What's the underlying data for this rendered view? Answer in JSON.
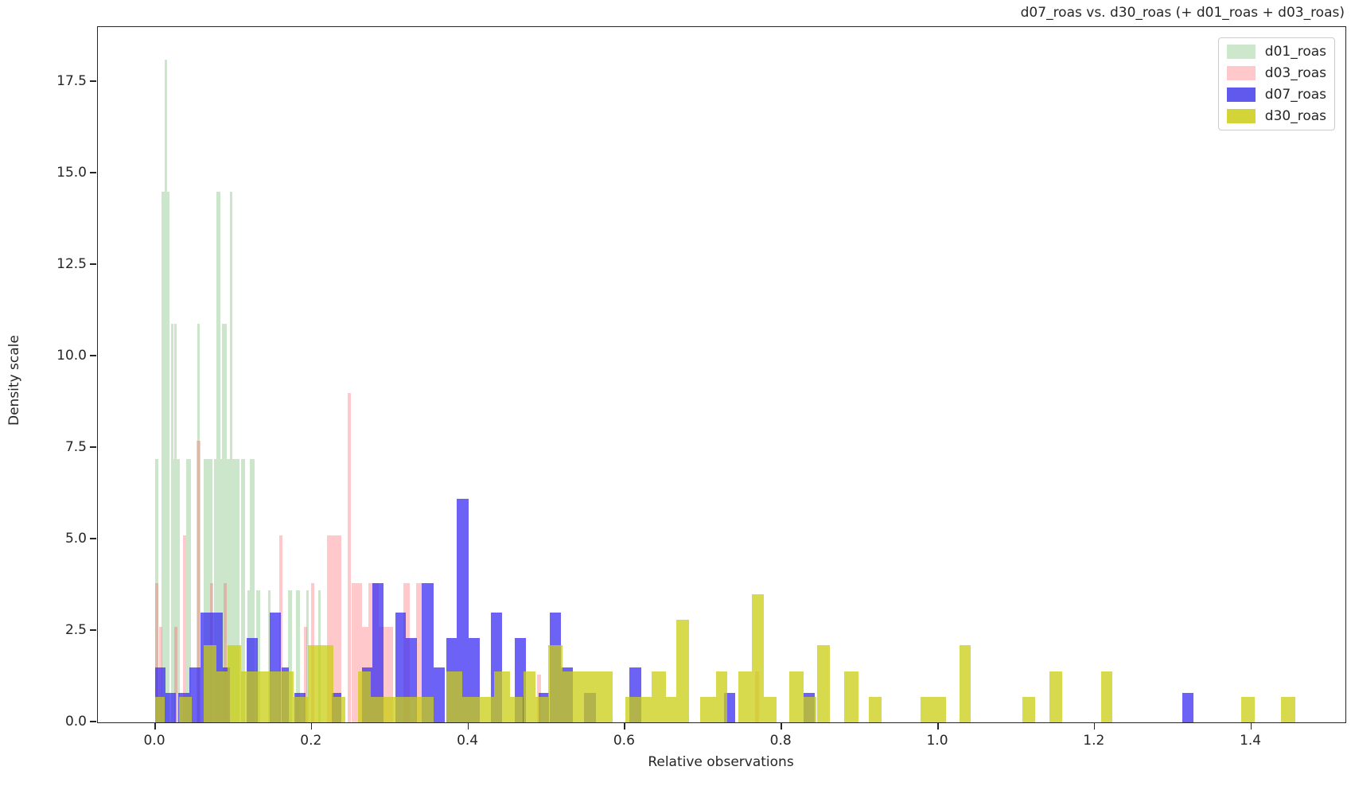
{
  "title": "d07_roas vs. d30_roas (+ d01_roas + d03_roas)",
  "chart_data": {
    "type": "bar",
    "subtype": "overlaid-histograms",
    "title": "d07_roas vs. d30_roas (+ d01_roas + d03_roas)",
    "xlabel": "Relative observations",
    "ylabel": "Density scale",
    "grid": false,
    "xlim": [
      -0.0732,
      1.5203
    ],
    "ylim": [
      0,
      19.0
    ],
    "x_ticks": [
      {
        "v": 0.0,
        "label": "0.0"
      },
      {
        "v": 0.2,
        "label": "0.2"
      },
      {
        "v": 0.4,
        "label": "0.4"
      },
      {
        "v": 0.6,
        "label": "0.6"
      },
      {
        "v": 0.8,
        "label": "0.8"
      },
      {
        "v": 1.0,
        "label": "1.0"
      },
      {
        "v": 1.2,
        "label": "1.2"
      },
      {
        "v": 1.4,
        "label": "1.4"
      }
    ],
    "y_ticks": [
      {
        "v": 0.0,
        "label": "0.0"
      },
      {
        "v": 2.5,
        "label": "2.5"
      },
      {
        "v": 5.0,
        "label": "5.0"
      },
      {
        "v": 7.5,
        "label": "7.5"
      },
      {
        "v": 10.0,
        "label": "10.0"
      },
      {
        "v": 12.5,
        "label": "12.5"
      },
      {
        "v": 15.0,
        "label": "15.0"
      },
      {
        "v": 17.5,
        "label": "17.5"
      }
    ],
    "legend": {
      "position": "upper-right",
      "entries": [
        {
          "label": "d01_roas",
          "swatch": "#cde7cd"
        },
        {
          "label": "d03_roas",
          "swatch": "#ffc9cb"
        },
        {
          "label": "d07_roas",
          "swatch": "#6159ee"
        },
        {
          "label": "d30_roas",
          "swatch": "#d2d438"
        }
      ]
    },
    "series": [
      {
        "name": "d01_roas",
        "color": "82,172,82",
        "alpha": 0.3,
        "bars": [
          [
            0.0,
            0.0045,
            7.2
          ],
          [
            0.008,
            0.0125,
            14.5
          ],
          [
            0.0125,
            0.015,
            18.1
          ],
          [
            0.015,
            0.018,
            14.5
          ],
          [
            0.0205,
            0.023,
            10.9
          ],
          [
            0.023,
            0.0245,
            7.2
          ],
          [
            0.0245,
            0.0275,
            10.9
          ],
          [
            0.0275,
            0.032,
            7.2
          ],
          [
            0.04,
            0.0455,
            7.2
          ],
          [
            0.0535,
            0.0565,
            10.9
          ],
          [
            0.062,
            0.073,
            7.2
          ],
          [
            0.0755,
            0.078,
            7.2
          ],
          [
            0.078,
            0.083,
            14.5
          ],
          [
            0.083,
            0.0855,
            7.2
          ],
          [
            0.0855,
            0.0915,
            10.9
          ],
          [
            0.0915,
            0.0955,
            7.2
          ],
          [
            0.0955,
            0.0985,
            14.5
          ],
          [
            0.0985,
            0.108,
            7.2
          ],
          [
            0.11,
            0.115,
            7.2
          ],
          [
            0.118,
            0.1205,
            3.6
          ],
          [
            0.1205,
            0.127,
            7.2
          ],
          [
            0.129,
            0.134,
            3.6
          ],
          [
            0.144,
            0.147,
            3.6
          ],
          [
            0.17,
            0.175,
            3.6
          ],
          [
            0.18,
            0.185,
            3.6
          ],
          [
            0.193,
            0.196,
            3.6
          ],
          [
            0.208,
            0.211,
            3.6
          ]
        ]
      },
      {
        "name": "d03_roas",
        "color": "255,75,82",
        "alpha": 0.3,
        "bars": [
          [
            0.0,
            0.0045,
            3.8
          ],
          [
            0.0045,
            0.009,
            2.6
          ],
          [
            0.024,
            0.0285,
            2.6
          ],
          [
            0.0355,
            0.04,
            5.1
          ],
          [
            0.053,
            0.0575,
            7.7
          ],
          [
            0.07,
            0.0745,
            3.8
          ],
          [
            0.0875,
            0.092,
            3.8
          ],
          [
            0.158,
            0.1625,
            5.1
          ],
          [
            0.19,
            0.1945,
            2.6
          ],
          [
            0.199,
            0.2035,
            3.8
          ],
          [
            0.2195,
            0.2375,
            5.1
          ],
          [
            0.246,
            0.2505,
            9.0
          ],
          [
            0.2505,
            0.264,
            3.8
          ],
          [
            0.264,
            0.2725,
            2.6
          ],
          [
            0.2725,
            0.2855,
            3.8
          ],
          [
            0.2855,
            0.304,
            2.6
          ],
          [
            0.3165,
            0.325,
            3.8
          ],
          [
            0.3335,
            0.34,
            3.8
          ],
          [
            0.488,
            0.4925,
            1.3
          ],
          [
            0.7665,
            0.771,
            1.4
          ]
        ]
      },
      {
        "name": "d07_roas",
        "color": "59,47,243",
        "alpha": 0.75,
        "bars": [
          [
            0.0,
            0.013,
            1.5
          ],
          [
            0.013,
            0.0265,
            0.8
          ],
          [
            0.0295,
            0.044,
            0.8
          ],
          [
            0.044,
            0.0575,
            1.5
          ],
          [
            0.0575,
            0.086,
            3.0
          ],
          [
            0.086,
            0.0955,
            1.5
          ],
          [
            0.117,
            0.1315,
            2.3
          ],
          [
            0.1465,
            0.161,
            3.0
          ],
          [
            0.161,
            0.1705,
            1.5
          ],
          [
            0.178,
            0.192,
            0.8
          ],
          [
            0.226,
            0.238,
            0.8
          ],
          [
            0.2645,
            0.277,
            1.5
          ],
          [
            0.277,
            0.2915,
            3.8
          ],
          [
            0.3065,
            0.3205,
            3.0
          ],
          [
            0.3205,
            0.334,
            2.3
          ],
          [
            0.3405,
            0.3555,
            3.8
          ],
          [
            0.3555,
            0.37,
            1.5
          ],
          [
            0.372,
            0.3855,
            2.3
          ],
          [
            0.3855,
            0.4,
            6.1
          ],
          [
            0.4,
            0.4145,
            2.3
          ],
          [
            0.429,
            0.4435,
            3.0
          ],
          [
            0.459,
            0.4735,
            2.3
          ],
          [
            0.4895,
            0.5035,
            0.8
          ],
          [
            0.5035,
            0.518,
            3.0
          ],
          [
            0.518,
            0.5335,
            1.5
          ],
          [
            0.548,
            0.5625,
            0.8
          ],
          [
            0.606,
            0.6205,
            1.5
          ],
          [
            0.727,
            0.7405,
            0.8
          ],
          [
            0.8285,
            0.8425,
            0.8
          ],
          [
            1.312,
            1.326,
            0.8
          ]
        ]
      },
      {
        "name": "d30_roas",
        "color": "202,205,16",
        "alpha": 0.75,
        "bars": [
          [
            0.0,
            0.0125,
            0.7
          ],
          [
            0.03,
            0.047,
            0.7
          ],
          [
            0.062,
            0.0785,
            2.1
          ],
          [
            0.0785,
            0.0925,
            1.4
          ],
          [
            0.0925,
            0.11,
            2.1
          ],
          [
            0.11,
            0.177,
            1.4
          ],
          [
            0.177,
            0.195,
            0.7
          ],
          [
            0.195,
            0.228,
            2.1
          ],
          [
            0.228,
            0.2425,
            0.7
          ],
          [
            0.259,
            0.2755,
            1.4
          ],
          [
            0.2755,
            0.356,
            0.7
          ],
          [
            0.372,
            0.392,
            1.4
          ],
          [
            0.392,
            0.433,
            0.7
          ],
          [
            0.433,
            0.453,
            1.4
          ],
          [
            0.453,
            0.47,
            0.7
          ],
          [
            0.47,
            0.486,
            1.4
          ],
          [
            0.486,
            0.502,
            0.7
          ],
          [
            0.502,
            0.52,
            2.1
          ],
          [
            0.52,
            0.584,
            1.4
          ],
          [
            0.601,
            0.6345,
            0.7
          ],
          [
            0.6345,
            0.652,
            1.4
          ],
          [
            0.652,
            0.6655,
            0.7
          ],
          [
            0.6655,
            0.6815,
            2.8
          ],
          [
            0.696,
            0.7165,
            0.7
          ],
          [
            0.7165,
            0.7305,
            1.4
          ],
          [
            0.745,
            0.762,
            1.4
          ],
          [
            0.762,
            0.777,
            3.5
          ],
          [
            0.777,
            0.794,
            0.7
          ],
          [
            0.81,
            0.8285,
            1.4
          ],
          [
            0.8285,
            0.845,
            0.7
          ],
          [
            0.845,
            0.862,
            2.1
          ],
          [
            0.88,
            0.898,
            1.4
          ],
          [
            0.911,
            0.928,
            0.7
          ],
          [
            0.978,
            1.01,
            0.7
          ],
          [
            1.027,
            1.042,
            2.1
          ],
          [
            1.108,
            1.124,
            0.7
          ],
          [
            1.142,
            1.159,
            1.4
          ],
          [
            1.208,
            1.223,
            1.4
          ],
          [
            1.387,
            1.405,
            0.7
          ],
          [
            1.438,
            1.456,
            0.7
          ]
        ]
      }
    ]
  }
}
